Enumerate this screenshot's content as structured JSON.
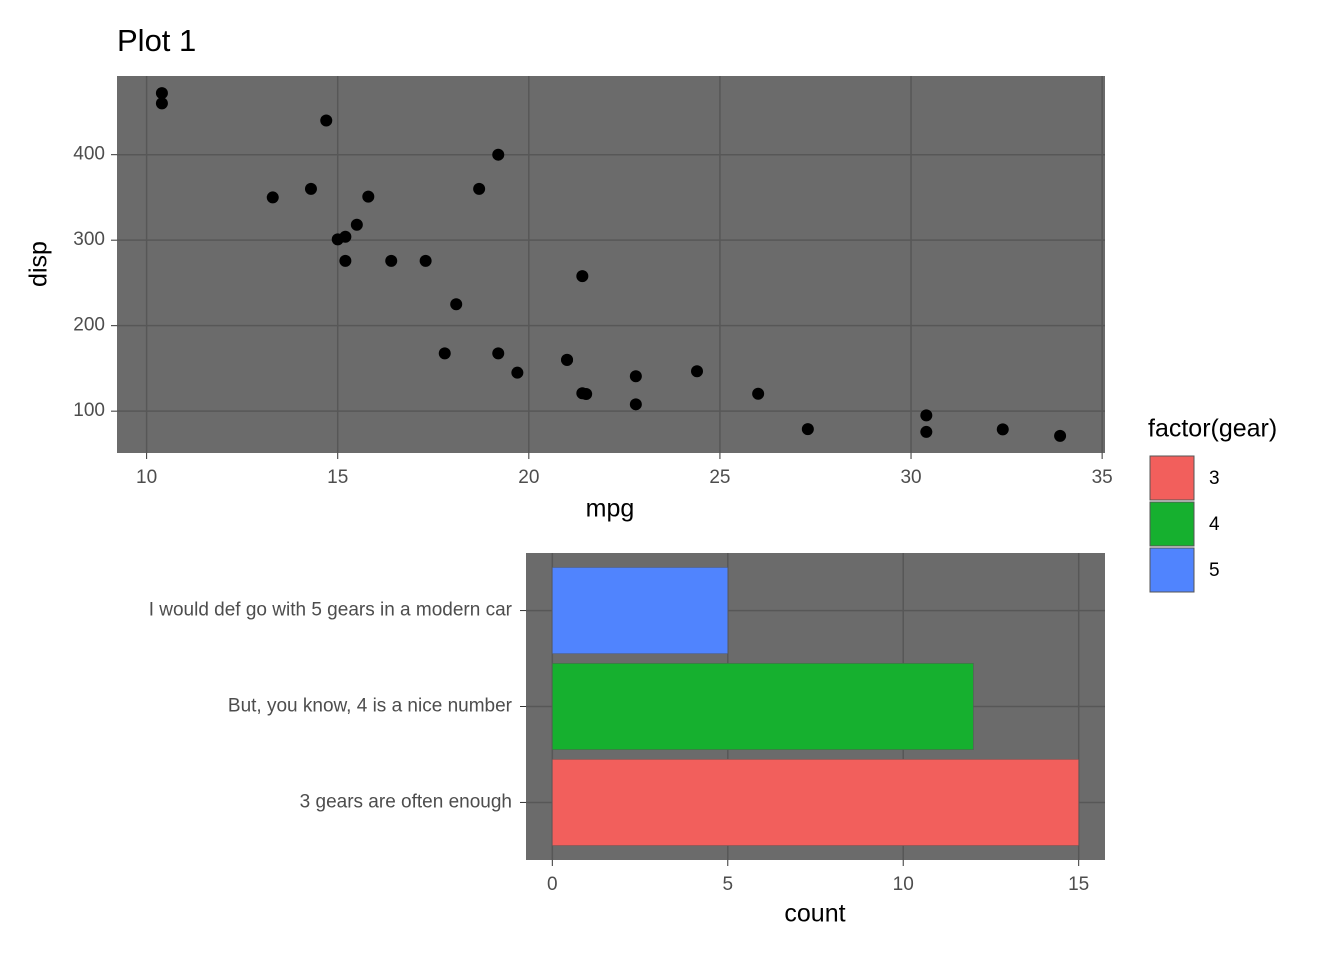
{
  "chart_data": [
    {
      "type": "scatter",
      "title": "Plot 1",
      "x_label": "mpg",
      "y_label": "disp",
      "color": "#000000",
      "x": [
        21,
        21,
        22.8,
        21.4,
        18.7,
        18.1,
        14.3,
        24.4,
        22.8,
        19.2,
        17.8,
        16.4,
        17.3,
        15.2,
        10.4,
        10.4,
        14.7,
        32.4,
        30.4,
        33.9,
        21.5,
        15.5,
        15.2,
        13.3,
        19.2,
        27.3,
        26,
        30.4,
        15.8,
        19.7,
        15,
        21.4
      ],
      "values": [
        160,
        160,
        108,
        258,
        360,
        225,
        360,
        146.7,
        140.8,
        167.6,
        167.6,
        275.8,
        275.8,
        275.8,
        472,
        460,
        440,
        78.7,
        75.7,
        71.1,
        120.1,
        318,
        304,
        350,
        400,
        79,
        120.3,
        95.1,
        351,
        145,
        301,
        121
      ],
      "xlim": [
        9.225,
        35.075
      ],
      "xticks": [
        10,
        15,
        20,
        25,
        30,
        35
      ],
      "ylim": [
        51.055,
        492.045
      ],
      "yticks": [
        100,
        200,
        300,
        400
      ],
      "grid": true
    },
    {
      "type": "barh",
      "x_label": "count",
      "categories": [
        "3 gears are often enough",
        "But, you know, 4 is a nice number",
        "I would def go with 5 gears in a modern car"
      ],
      "values": [
        15,
        12,
        5
      ],
      "colors": [
        "#F25F5C",
        "#16B02F",
        "#5084FE"
      ],
      "xlim": [
        -0.75,
        15.75
      ],
      "xticks": [
        0,
        5,
        10,
        15
      ],
      "grid": true,
      "legend_title": "factor(gear)",
      "legend_labels": [
        "3",
        "4",
        "5"
      ],
      "legend_position": "right"
    }
  ]
}
